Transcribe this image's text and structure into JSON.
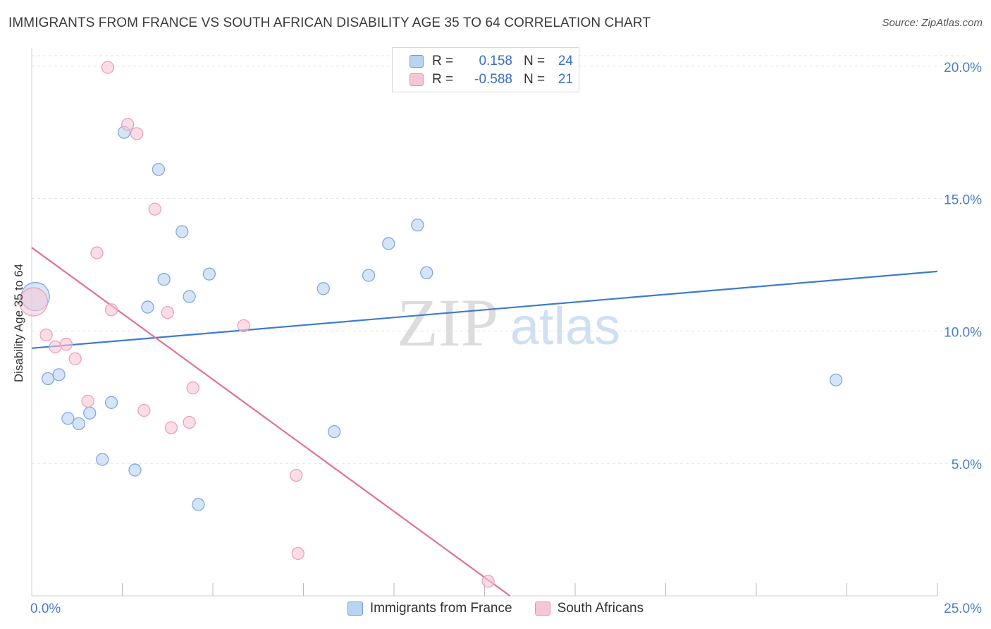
{
  "title": "IMMIGRANTS FROM FRANCE VS SOUTH AFRICAN DISABILITY AGE 35 TO 64 CORRELATION CHART",
  "source": "Source: ZipAtlas.com",
  "watermark": {
    "zip": "ZIP",
    "atlas": "atlas"
  },
  "colors": {
    "blue": "#3d7bd1",
    "blue_fill": "#b9d3f2",
    "pink": "#e2709b",
    "pink_fill": "#f7c6d6",
    "tick_label": "#4a7fcc"
  },
  "legend_top": {
    "rows": [
      {
        "r_label": "R =",
        "r_value": "0.158",
        "n_label": "N =",
        "n_value": "24"
      },
      {
        "r_label": "R =",
        "r_value": "-0.588",
        "n_label": "N =",
        "n_value": "21"
      }
    ]
  },
  "chart_data": {
    "type": "scatter",
    "title": "IMMIGRANTS FROM FRANCE VS SOUTH AFRICAN DISABILITY AGE 35 TO 64 CORRELATION CHART",
    "xlabel": "",
    "ylabel": "Disability Age 35 to 64",
    "xlim": [
      0,
      25
    ],
    "ylim": [
      0,
      20.5
    ],
    "x_tick_labels": [
      "0.0%",
      "25.0%"
    ],
    "y_ticks": [
      5,
      10,
      15,
      20
    ],
    "y_tick_labels": [
      "5.0%",
      "10.0%",
      "15.0%",
      "20.0%"
    ],
    "grid": true,
    "legend_position": "bottom",
    "series": [
      {
        "name": "Immigrants from France",
        "color": "#3d7bd1",
        "points": [
          {
            "x": 0.1,
            "y": 11.3,
            "big": true
          },
          {
            "x": 0.45,
            "y": 8.2
          },
          {
            "x": 0.75,
            "y": 8.35
          },
          {
            "x": 1.0,
            "y": 6.7
          },
          {
            "x": 1.3,
            "y": 6.5
          },
          {
            "x": 1.6,
            "y": 6.9
          },
          {
            "x": 1.95,
            "y": 5.15
          },
          {
            "x": 2.2,
            "y": 7.3
          },
          {
            "x": 2.55,
            "y": 17.5
          },
          {
            "x": 2.85,
            "y": 4.75
          },
          {
            "x": 3.2,
            "y": 10.9
          },
          {
            "x": 3.5,
            "y": 16.1
          },
          {
            "x": 3.65,
            "y": 11.95
          },
          {
            "x": 4.15,
            "y": 13.75
          },
          {
            "x": 4.35,
            "y": 11.3
          },
          {
            "x": 4.6,
            "y": 3.45
          },
          {
            "x": 4.9,
            "y": 12.15
          },
          {
            "x": 8.05,
            "y": 11.6
          },
          {
            "x": 8.35,
            "y": 6.2
          },
          {
            "x": 9.3,
            "y": 12.1
          },
          {
            "x": 9.85,
            "y": 13.3
          },
          {
            "x": 10.65,
            "y": 14.0
          },
          {
            "x": 10.9,
            "y": 12.2
          },
          {
            "x": 22.2,
            "y": 8.15
          }
        ],
        "trend": {
          "x1": 0,
          "y1": 9.35,
          "x2": 25,
          "y2": 12.25
        }
      },
      {
        "name": "South Africans",
        "color": "#e2709b",
        "points": [
          {
            "x": 0.05,
            "y": 11.1,
            "big": true
          },
          {
            "x": 0.4,
            "y": 9.85
          },
          {
            "x": 0.65,
            "y": 9.4
          },
          {
            "x": 0.95,
            "y": 9.5
          },
          {
            "x": 1.2,
            "y": 8.95
          },
          {
            "x": 1.55,
            "y": 7.35
          },
          {
            "x": 1.8,
            "y": 12.95
          },
          {
            "x": 2.1,
            "y": 19.95
          },
          {
            "x": 2.2,
            "y": 10.8
          },
          {
            "x": 2.65,
            "y": 17.8
          },
          {
            "x": 2.9,
            "y": 17.45
          },
          {
            "x": 3.1,
            "y": 7.0
          },
          {
            "x": 3.4,
            "y": 14.6
          },
          {
            "x": 3.75,
            "y": 10.7
          },
          {
            "x": 3.85,
            "y": 6.35
          },
          {
            "x": 4.35,
            "y": 6.55
          },
          {
            "x": 4.45,
            "y": 7.85
          },
          {
            "x": 5.85,
            "y": 10.2
          },
          {
            "x": 7.3,
            "y": 4.55
          },
          {
            "x": 7.35,
            "y": 1.6
          },
          {
            "x": 12.6,
            "y": 0.55
          }
        ],
        "trend": {
          "x1": 0,
          "y1": 13.15,
          "x2": 13.2,
          "y2": 0
        }
      }
    ]
  }
}
